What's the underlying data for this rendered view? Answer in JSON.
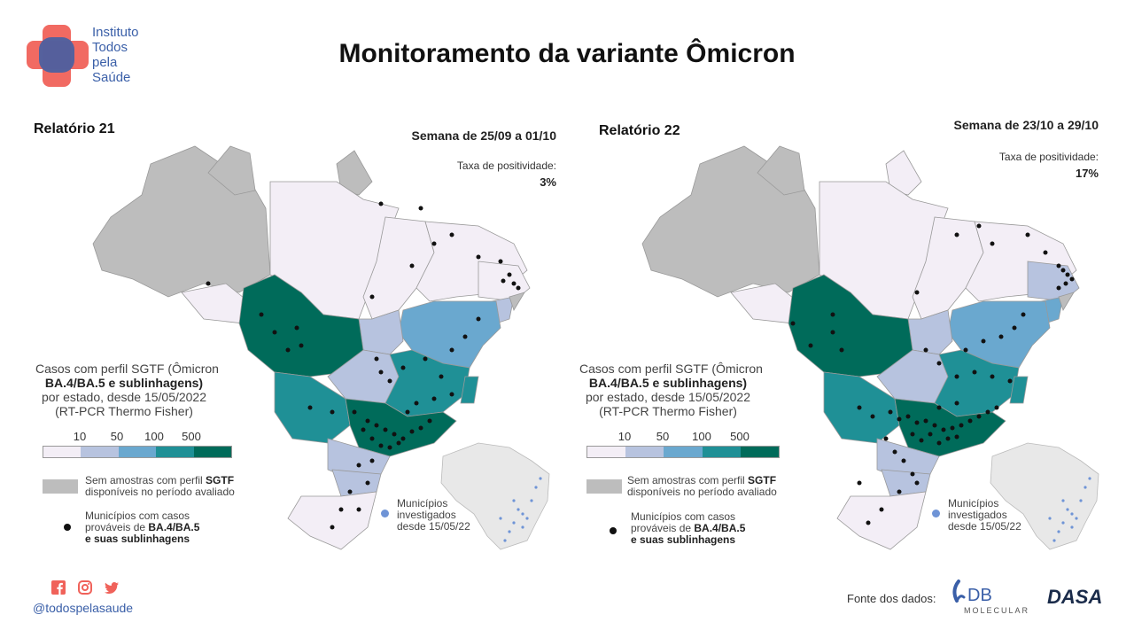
{
  "header": {
    "logo_lines": [
      "Instituto",
      "Todos",
      "pela",
      "Saúde"
    ],
    "title": "Monitoramento da variante Ômicron"
  },
  "panels": [
    {
      "report": "Relatório 21",
      "week": "Semana de 25/09 a 01/10",
      "positivity_label": "Taxa de positividade:",
      "positivity_value": "3%"
    },
    {
      "report": "Relatório 22",
      "week": "Semana de 23/10 a 29/10",
      "positivity_label": "Taxa de positividade:",
      "positivity_value": "17%"
    }
  ],
  "legend": {
    "title_line1": "Casos com perfil SGTF (Ômicron",
    "title_line2": "BA.4/BA.5 e sublinhagens)",
    "title_line3": "por estado, desde 15/05/2022",
    "title_line4": "(RT-PCR Thermo Fisher)",
    "scale_values": [
      "10",
      "50",
      "100",
      "500"
    ],
    "scale_colors": [
      "#f3eef6",
      "#b7c3df",
      "#6aa8cf",
      "#1f9096",
      "#006b5a"
    ],
    "no_sample_line1": "Sem amostras com perfil ",
    "no_sample_bold": "SGTF",
    "no_sample_line2": "disponíveis no período avaliado",
    "no_sample_color": "#bdbdbd",
    "municipios_line1": "Municípios com casos",
    "municipios_line2_prefix": "prováveis de ",
    "municipios_line2_bold": "BA.4/BA.5",
    "municipios_line3": "e suas sublinhagens",
    "inset_line1": "Municípios",
    "inset_line2": "investigados",
    "inset_line3": "desde 15/05/22"
  },
  "footer": {
    "social_icons": [
      "facebook-icon",
      "instagram-icon",
      "twitter-icon"
    ],
    "handle": "@todospelasaude",
    "source_label": "Fonte dos dados:",
    "db_logo_text": "DB",
    "db_logo_sub": "MOLECULAR",
    "dasa_logo_text": "DASA"
  },
  "colors": {
    "brand_red": "#f0625a",
    "brand_blue": "#3a5fa8",
    "dot": "#111111"
  }
}
